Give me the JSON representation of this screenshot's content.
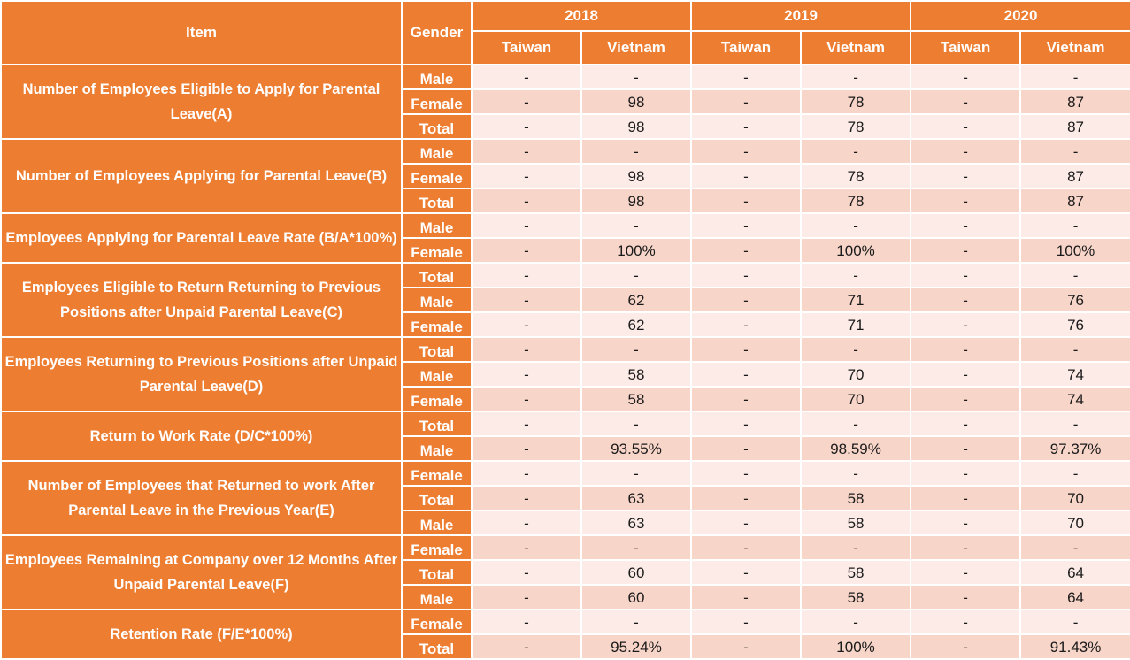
{
  "header": {
    "item": "Item",
    "gender": "Gender",
    "years": [
      "2018",
      "2019",
      "2020"
    ],
    "regions": [
      "Taiwan",
      "Vietnam",
      "Taiwan",
      "Vietnam",
      "Taiwan",
      "Vietnam"
    ]
  },
  "groups": [
    {
      "label": "Number of Employees Eligible to Apply for Parental Leave(A)",
      "rows": [
        {
          "gender": "Male",
          "values": [
            "-",
            "-",
            "-",
            "-",
            "-",
            "-"
          ]
        },
        {
          "gender": "Female",
          "values": [
            "-",
            "98",
            "-",
            "78",
            "-",
            "87"
          ]
        },
        {
          "gender": "Total",
          "values": [
            "-",
            "98",
            "-",
            "78",
            "-",
            "87"
          ]
        }
      ]
    },
    {
      "label": "Number of Employees Applying for Parental Leave(B)",
      "rows": [
        {
          "gender": "Male",
          "values": [
            "-",
            "-",
            "-",
            "-",
            "-",
            "-"
          ]
        },
        {
          "gender": "Female",
          "values": [
            "-",
            "98",
            "-",
            "78",
            "-",
            "87"
          ]
        },
        {
          "gender": "Total",
          "values": [
            "-",
            "98",
            "-",
            "78",
            "-",
            "87"
          ]
        }
      ]
    },
    {
      "label": "Employees Applying for Parental Leave Rate (B/A*100%)",
      "rows": [
        {
          "gender": "Male",
          "values": [
            "-",
            "-",
            "-",
            "-",
            "-",
            "-"
          ]
        },
        {
          "gender": "Female",
          "values": [
            "-",
            "100%",
            "-",
            "100%",
            "-",
            "100%"
          ]
        }
      ]
    },
    {
      "label": "Employees Eligible to Return Returning to Previous Positions after Unpaid Parental Leave(C)",
      "rows": [
        {
          "gender": "Total",
          "values": [
            "-",
            "-",
            "-",
            "-",
            "-",
            "-"
          ]
        },
        {
          "gender": "Male",
          "values": [
            "-",
            "62",
            "-",
            "71",
            "-",
            "76"
          ]
        },
        {
          "gender": "Female",
          "values": [
            "-",
            "62",
            "-",
            "71",
            "-",
            "76"
          ]
        }
      ]
    },
    {
      "label": "Employees Returning to Previous Positions after Unpaid Parental Leave(D)",
      "rows": [
        {
          "gender": "Total",
          "values": [
            "-",
            "-",
            "-",
            "-",
            "-",
            "-"
          ]
        },
        {
          "gender": "Male",
          "values": [
            "-",
            "58",
            "-",
            "70",
            "-",
            "74"
          ]
        },
        {
          "gender": "Female",
          "values": [
            "-",
            "58",
            "-",
            "70",
            "-",
            "74"
          ]
        }
      ]
    },
    {
      "label": "Return to Work Rate (D/C*100%)",
      "rows": [
        {
          "gender": "Total",
          "values": [
            "-",
            "-",
            "-",
            "-",
            "-",
            "-"
          ]
        },
        {
          "gender": "Male",
          "values": [
            "-",
            "93.55%",
            "-",
            "98.59%",
            "-",
            "97.37%"
          ]
        }
      ]
    },
    {
      "label": "Number of Employees that Returned to work After Parental Leave in the Previous Year(E)",
      "rows": [
        {
          "gender": "Female",
          "values": [
            "-",
            "-",
            "-",
            "-",
            "-",
            "-"
          ]
        },
        {
          "gender": "Total",
          "values": [
            "-",
            "63",
            "-",
            "58",
            "-",
            "70"
          ]
        },
        {
          "gender": "Male",
          "values": [
            "-",
            "63",
            "-",
            "58",
            "-",
            "70"
          ]
        }
      ]
    },
    {
      "label": "Employees Remaining at Company over 12 Months After Unpaid Parental Leave(F)",
      "rows": [
        {
          "gender": "Female",
          "values": [
            "-",
            "-",
            "-",
            "-",
            "-",
            "-"
          ]
        },
        {
          "gender": "Total",
          "values": [
            "-",
            "60",
            "-",
            "58",
            "-",
            "64"
          ]
        },
        {
          "gender": "Male",
          "values": [
            "-",
            "60",
            "-",
            "58",
            "-",
            "64"
          ]
        }
      ]
    },
    {
      "label": "Retention Rate (F/E*100%)",
      "rows": [
        {
          "gender": "Female",
          "values": [
            "-",
            "-",
            "-",
            "-",
            "-",
            "-"
          ]
        },
        {
          "gender": "Total",
          "values": [
            "-",
            "95.24%",
            "-",
            "100%",
            "-",
            "91.43%"
          ]
        }
      ]
    }
  ]
}
